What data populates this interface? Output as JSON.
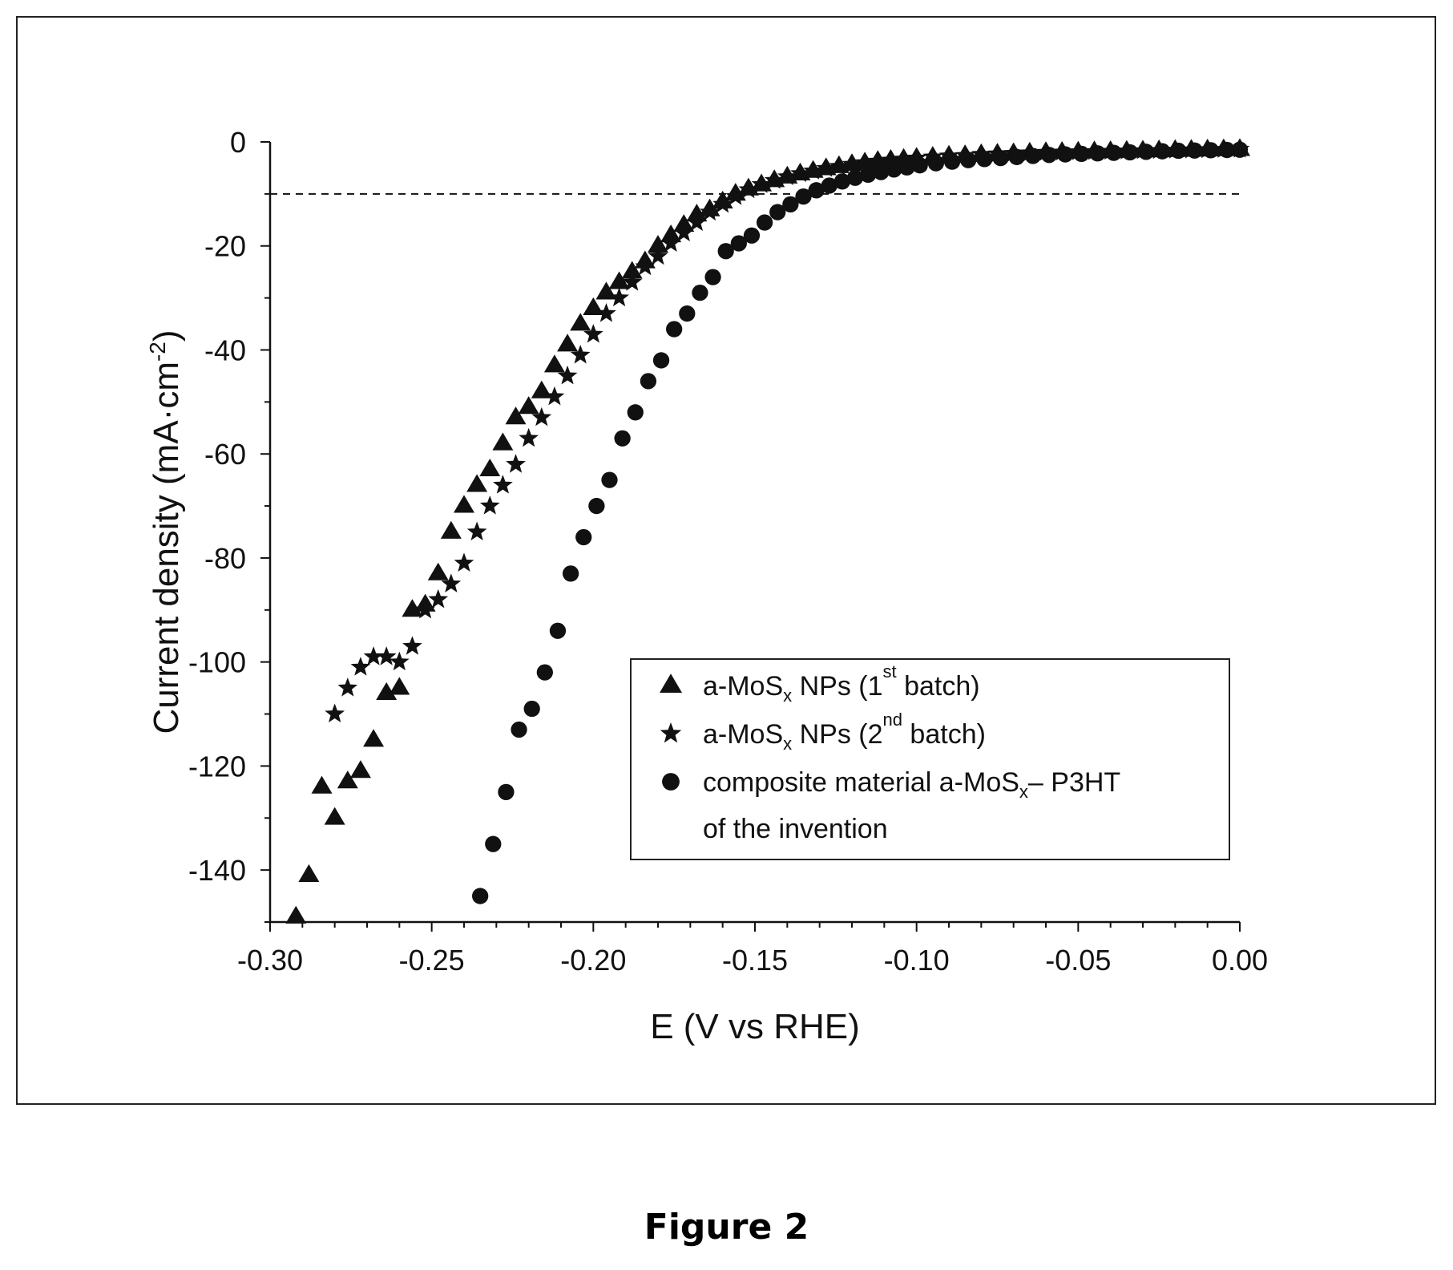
{
  "caption": "Figure 2",
  "chart_data": {
    "type": "scatter",
    "xlabel": "E (V vs RHE)",
    "ylabel": "Current density (mA·cm-2)",
    "ylabel_parts": {
      "main": "Current density (mA·cm",
      "sup": "-2",
      "close": ")"
    },
    "xlim": [
      -0.3,
      0.0
    ],
    "ylim": [
      -150,
      0
    ],
    "xticks": [
      -0.3,
      -0.25,
      -0.2,
      -0.15,
      -0.1,
      -0.05,
      0.0
    ],
    "xtick_labels": [
      "-0.30",
      "-0.25",
      "-0.20",
      "-0.15",
      "-0.10",
      "-0.05",
      "0.00"
    ],
    "yticks": [
      0,
      -20,
      -40,
      -60,
      -80,
      -100,
      -120,
      -140
    ],
    "ytick_labels": [
      "0",
      "-20",
      "-40",
      "-60",
      "-80",
      "-100",
      "-120",
      "-140"
    ],
    "reference_line": {
      "y": -10,
      "style": "dashed"
    },
    "grid": false,
    "legend_position": "bottom-right",
    "legend": [
      {
        "marker": "triangle",
        "parts": [
          "a-MoS",
          "x",
          " NPs (1",
          "st",
          " batch)"
        ]
      },
      {
        "marker": "star",
        "parts": [
          "a-MoS",
          "x",
          " NPs (2",
          "nd",
          " batch)"
        ]
      },
      {
        "marker": "circle",
        "parts": [
          "composite material a-MoS",
          "x",
          "– P3HT"
        ],
        "line2": "of the invention"
      }
    ],
    "series": [
      {
        "marker": "triangle",
        "color": "#111111",
        "x": [
          -0.292,
          -0.288,
          -0.284,
          -0.28,
          -0.276,
          -0.272,
          -0.268,
          -0.264,
          -0.26,
          -0.256,
          -0.252,
          -0.248,
          -0.244,
          -0.24,
          -0.236,
          -0.232,
          -0.228,
          -0.224,
          -0.22,
          -0.216,
          -0.212,
          -0.208,
          -0.204,
          -0.2,
          -0.196,
          -0.192,
          -0.188,
          -0.184,
          -0.18,
          -0.176,
          -0.172,
          -0.168,
          -0.164,
          -0.16,
          -0.156,
          -0.152,
          -0.148,
          -0.144,
          -0.14,
          -0.136,
          -0.132,
          -0.128,
          -0.124,
          -0.12,
          -0.116,
          -0.112,
          -0.108,
          -0.104,
          -0.1,
          -0.095,
          -0.09,
          -0.085,
          -0.08,
          -0.075,
          -0.07,
          -0.065,
          -0.06,
          -0.055,
          -0.05,
          -0.045,
          -0.04,
          -0.035,
          -0.03,
          -0.025,
          -0.02,
          -0.015,
          -0.01,
          -0.005,
          0.0
        ],
        "y": [
          -149,
          -141,
          -124,
          -130,
          -123,
          -121,
          -115,
          -106,
          -105,
          -90,
          -89,
          -83,
          -75,
          -70,
          -66,
          -63,
          -58,
          -53,
          -51,
          -48,
          -43,
          -39,
          -35,
          -32,
          -29,
          -27,
          -25,
          -23,
          -20,
          -18,
          -16,
          -14,
          -13,
          -11.5,
          -10,
          -9,
          -8.2,
          -7.4,
          -6.7,
          -6.1,
          -5.6,
          -5.1,
          -4.7,
          -4.3,
          -4.0,
          -3.7,
          -3.5,
          -3.3,
          -3.1,
          -2.9,
          -2.7,
          -2.6,
          -2.4,
          -2.3,
          -2.2,
          -2.1,
          -2.0,
          -1.95,
          -1.9,
          -1.85,
          -1.8,
          -1.75,
          -1.7,
          -1.65,
          -1.6,
          -1.55,
          -1.5,
          -1.45,
          -1.4
        ]
      },
      {
        "marker": "star",
        "color": "#111111",
        "x": [
          -0.28,
          -0.276,
          -0.272,
          -0.268,
          -0.264,
          -0.26,
          -0.256,
          -0.252,
          -0.248,
          -0.244,
          -0.24,
          -0.236,
          -0.232,
          -0.228,
          -0.224,
          -0.22,
          -0.216,
          -0.212,
          -0.208,
          -0.204,
          -0.2,
          -0.196,
          -0.192,
          -0.188,
          -0.184,
          -0.18,
          -0.176,
          -0.172,
          -0.168,
          -0.164,
          -0.16,
          -0.156,
          -0.152,
          -0.148,
          -0.144,
          -0.14,
          -0.136,
          -0.132,
          -0.128,
          -0.124,
          -0.12,
          -0.116,
          -0.112,
          -0.108,
          -0.104,
          -0.1,
          -0.095,
          -0.09,
          -0.085,
          -0.08,
          -0.075,
          -0.07,
          -0.065,
          -0.06,
          -0.055,
          -0.05,
          -0.045,
          -0.04,
          -0.035,
          -0.03,
          -0.025,
          -0.02,
          -0.015,
          -0.01,
          -0.005,
          0.0
        ],
        "y": [
          -110,
          -105,
          -101,
          -99,
          -99,
          -100,
          -97,
          -90,
          -88,
          -85,
          -81,
          -75,
          -70,
          -66,
          -62,
          -57,
          -53,
          -49,
          -45,
          -41,
          -37,
          -33,
          -30,
          -27,
          -24,
          -22,
          -19.5,
          -17.5,
          -15.5,
          -13.5,
          -12,
          -10.5,
          -9.2,
          -8.2,
          -7.4,
          -6.7,
          -6.1,
          -5.6,
          -5.1,
          -4.7,
          -4.3,
          -4.0,
          -3.7,
          -3.5,
          -3.3,
          -3.1,
          -2.9,
          -2.7,
          -2.6,
          -2.4,
          -2.3,
          -2.2,
          -2.1,
          -2.0,
          -1.95,
          -1.9,
          -1.85,
          -1.8,
          -1.75,
          -1.7,
          -1.65,
          -1.6,
          -1.55,
          -1.5,
          -1.45,
          -1.4
        ]
      },
      {
        "marker": "circle",
        "color": "#111111",
        "x": [
          -0.235,
          -0.231,
          -0.227,
          -0.223,
          -0.219,
          -0.215,
          -0.211,
          -0.207,
          -0.203,
          -0.199,
          -0.195,
          -0.191,
          -0.187,
          -0.183,
          -0.179,
          -0.175,
          -0.171,
          -0.167,
          -0.163,
          -0.159,
          -0.155,
          -0.151,
          -0.147,
          -0.143,
          -0.139,
          -0.135,
          -0.131,
          -0.127,
          -0.123,
          -0.119,
          -0.115,
          -0.111,
          -0.107,
          -0.103,
          -0.099,
          -0.094,
          -0.089,
          -0.084,
          -0.079,
          -0.074,
          -0.069,
          -0.064,
          -0.059,
          -0.054,
          -0.049,
          -0.044,
          -0.039,
          -0.034,
          -0.029,
          -0.024,
          -0.019,
          -0.014,
          -0.009,
          -0.004,
          0.0
        ],
        "y": [
          -145,
          -135,
          -125,
          -113,
          -109,
          -102,
          -94,
          -83,
          -76,
          -70,
          -65,
          -57,
          -52,
          -46,
          -42,
          -36,
          -33,
          -29,
          -26,
          -21,
          -19.5,
          -18,
          -15.5,
          -13.5,
          -12,
          -10.5,
          -9.3,
          -8.4,
          -7.6,
          -6.9,
          -6.3,
          -5.8,
          -5.3,
          -4.9,
          -4.5,
          -4.1,
          -3.8,
          -3.5,
          -3.3,
          -3.1,
          -2.9,
          -2.7,
          -2.5,
          -2.4,
          -2.3,
          -2.2,
          -2.1,
          -2.0,
          -1.9,
          -1.8,
          -1.7,
          -1.65,
          -1.6,
          -1.55,
          -1.5
        ]
      }
    ]
  }
}
